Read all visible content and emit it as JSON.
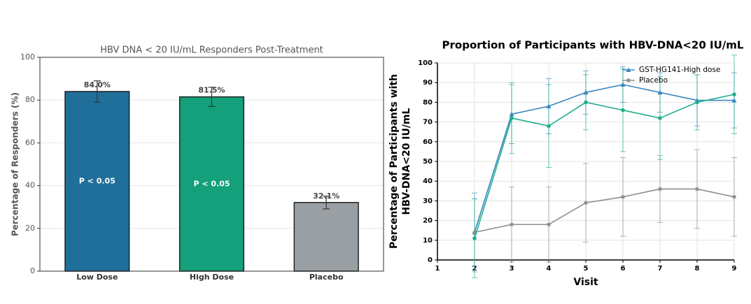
{
  "chart_data": [
    {
      "type": "bar",
      "title": "HBV DNA < 20 IU/mL Responders Post-Treatment",
      "ylabel": "Percentage of Responders (%)",
      "categories": [
        "Low Dose",
        "High Dose",
        "Placebo"
      ],
      "values": [
        84.0,
        81.5,
        32.1
      ],
      "value_labels": [
        "84.0%",
        "81.5%",
        "32.1%"
      ],
      "errors": [
        5,
        4.5,
        3
      ],
      "bar_labels": [
        "P < 0.05",
        "P < 0.05",
        null
      ],
      "colors": [
        "#1f6f9a",
        "#13a07a",
        "#9a9fa3"
      ],
      "ylim": [
        0,
        100
      ],
      "yticks": [
        0,
        20,
        40,
        60,
        80,
        100
      ],
      "grid": true
    },
    {
      "type": "line",
      "title": "Proportion of Participants with HBV-DNA<20 IU/mL",
      "ylabel": [
        "Percentage of Participants with",
        "HBV-DNA<20 IU/mL"
      ],
      "xlabel": "Visit",
      "x": [
        2,
        3,
        4,
        5,
        6,
        7,
        8,
        9
      ],
      "series": [
        {
          "name": "GST-HG141-High dose",
          "color": "#3a87c0",
          "marker": "triangle",
          "values": [
            14,
            74,
            78,
            85,
            89,
            85,
            81,
            81
          ],
          "errors": [
            20,
            15,
            14,
            11,
            9,
            10,
            13,
            14
          ]
        },
        {
          "name": "Placebo",
          "color": "#8c8c8c",
          "marker": "star",
          "values": [
            14,
            18,
            18,
            29,
            32,
            36,
            36,
            32
          ],
          "errors": [
            17,
            19,
            19,
            20,
            20,
            17,
            20,
            20
          ]
        },
        {
          "name": null,
          "color": "#1fae8f",
          "marker": "circle",
          "values": [
            11,
            72,
            68,
            80,
            76,
            72,
            80,
            84
          ],
          "errors": [
            20,
            18,
            21,
            14,
            21,
            21,
            14,
            20
          ]
        }
      ],
      "xlim": [
        1,
        9
      ],
      "xticks": [
        1,
        2,
        3,
        4,
        5,
        6,
        7,
        8,
        9
      ],
      "ylim": [
        0,
        100
      ],
      "yticks": [
        0,
        10,
        20,
        30,
        40,
        50,
        60,
        70,
        80,
        90,
        100
      ],
      "grid": true,
      "legend": "upper right"
    }
  ]
}
